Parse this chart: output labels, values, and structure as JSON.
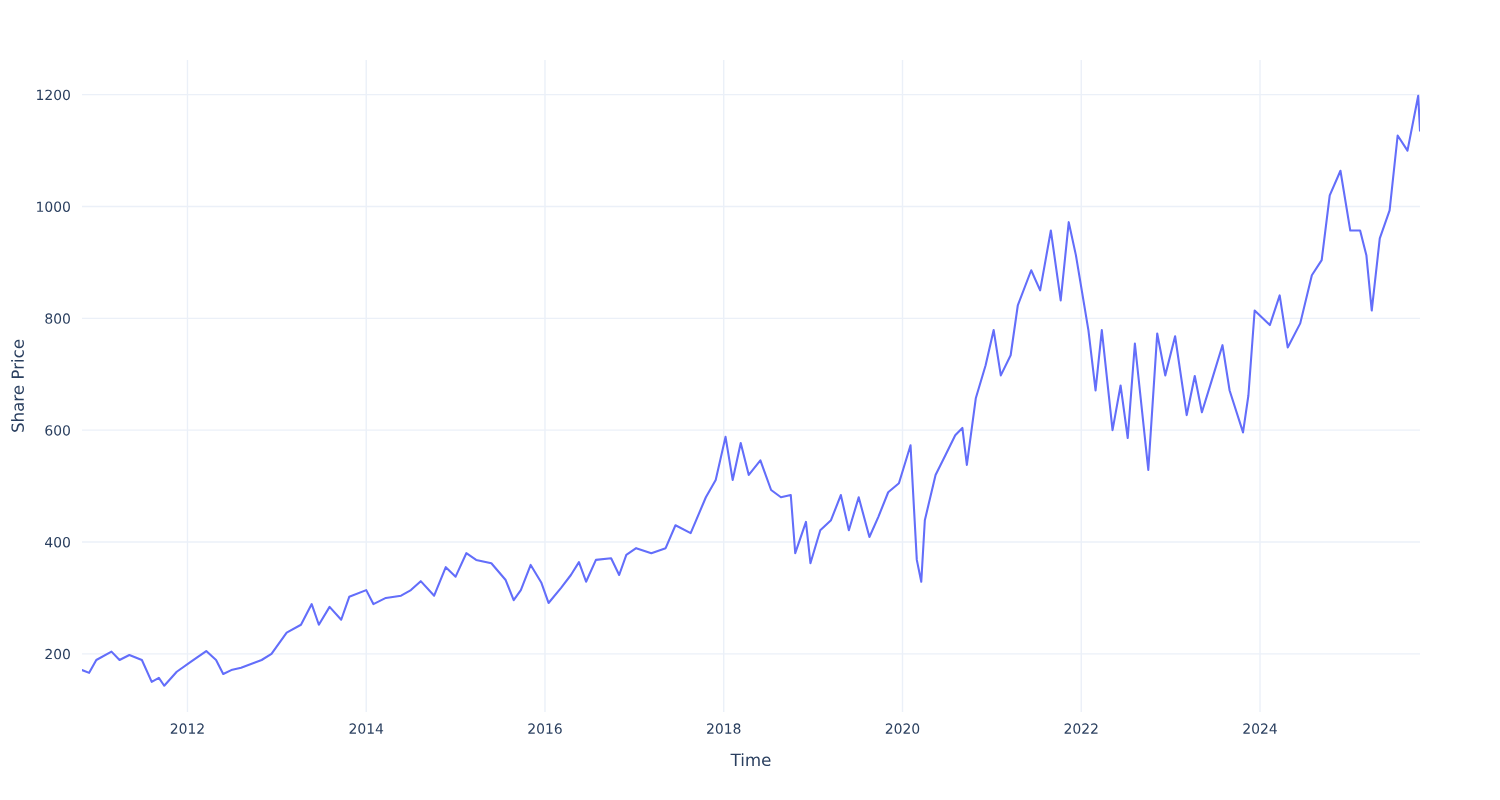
{
  "chart_data": {
    "type": "line",
    "xlabel": "Time",
    "ylabel": "Share Price",
    "x": [
      2010.82,
      2010.9,
      2010.98,
      2011.15,
      2011.24,
      2011.35,
      2011.49,
      2011.6,
      2011.68,
      2011.74,
      2011.88,
      2012.04,
      2012.21,
      2012.32,
      2012.4,
      2012.49,
      2012.6,
      2012.83,
      2012.94,
      2013.11,
      2013.27,
      2013.39,
      2013.47,
      2013.59,
      2013.72,
      2013.81,
      2014.0,
      2014.08,
      2014.22,
      2014.39,
      2014.5,
      2014.61,
      2014.76,
      2014.89,
      2015.0,
      2015.12,
      2015.23,
      2015.4,
      2015.56,
      2015.65,
      2015.73,
      2015.84,
      2015.96,
      2016.04,
      2016.18,
      2016.29,
      2016.38,
      2016.46,
      2016.57,
      2016.74,
      2016.83,
      2016.91,
      2017.02,
      2017.19,
      2017.35,
      2017.46,
      2017.63,
      2017.8,
      2017.91,
      2018.02,
      2018.1,
      2018.19,
      2018.28,
      2018.41,
      2018.53,
      2018.64,
      2018.75,
      2018.8,
      2018.92,
      2018.97,
      2019.08,
      2019.2,
      2019.31,
      2019.4,
      2019.51,
      2019.63,
      2019.73,
      2019.84,
      2019.96,
      2020.09,
      2020.16,
      2020.21,
      2020.25,
      2020.37,
      2020.48,
      2020.59,
      2020.67,
      2020.72,
      2020.82,
      2020.93,
      2021.02,
      2021.1,
      2021.21,
      2021.29,
      2021.44,
      2021.54,
      2021.66,
      2021.77,
      2021.86,
      2021.94,
      2022.08,
      2022.16,
      2022.23,
      2022.35,
      2022.44,
      2022.52,
      2022.6,
      2022.75,
      2022.85,
      2022.94,
      2023.05,
      2023.18,
      2023.27,
      2023.35,
      2023.46,
      2023.58,
      2023.66,
      2023.81,
      2023.87,
      2023.94,
      2024.11,
      2024.22,
      2024.31,
      2024.45,
      2024.58,
      2024.69,
      2024.78,
      2024.9,
      2025.01,
      2025.12,
      2025.19,
      2025.25,
      2025.34,
      2025.45,
      2025.54,
      2025.65,
      2025.77,
      2025.79
    ],
    "series": [
      {
        "color": "#636efa",
        "values": [
          171,
          166,
          189,
          204,
          189,
          198,
          189,
          150,
          157,
          143,
          168,
          186,
          205,
          189,
          164,
          171,
          175,
          189,
          200,
          238,
          252,
          289,
          252,
          284,
          261,
          302,
          314,
          289,
          300,
          304,
          314,
          330,
          304,
          355,
          338,
          380,
          368,
          362,
          332,
          296,
          314,
          359,
          327,
          291,
          318,
          341,
          364,
          329,
          368,
          371,
          341,
          377,
          389,
          380,
          389,
          430,
          416,
          480,
          511,
          588,
          511,
          577,
          520,
          546,
          493,
          480,
          484,
          380,
          436,
          362,
          421,
          439,
          484,
          421,
          480,
          409,
          445,
          489,
          505,
          573,
          368,
          329,
          439,
          520,
          555,
          591,
          604,
          538,
          657,
          716,
          779,
          698,
          734,
          823,
          886,
          850,
          957,
          832,
          972,
          913,
          779,
          671,
          779,
          600,
          680,
          586,
          755,
          529,
          773,
          698,
          768,
          627,
          697,
          632,
          689,
          752,
          671,
          596,
          662,
          814,
          788,
          841,
          748,
          791,
          877,
          904,
          1020,
          1064,
          957,
          957,
          913,
          814,
          943,
          993,
          1127,
          1100,
          1198,
          1136
        ]
      }
    ],
    "xlim": [
      2010.82,
      2025.79
    ],
    "ylim": [
      96,
      1262
    ],
    "xticks": [
      2012,
      2014,
      2016,
      2018,
      2020,
      2022,
      2024
    ],
    "yticks": [
      200,
      400,
      600,
      800,
      1000,
      1200
    ],
    "grid": true,
    "marker": "none",
    "line_style": "solid"
  }
}
